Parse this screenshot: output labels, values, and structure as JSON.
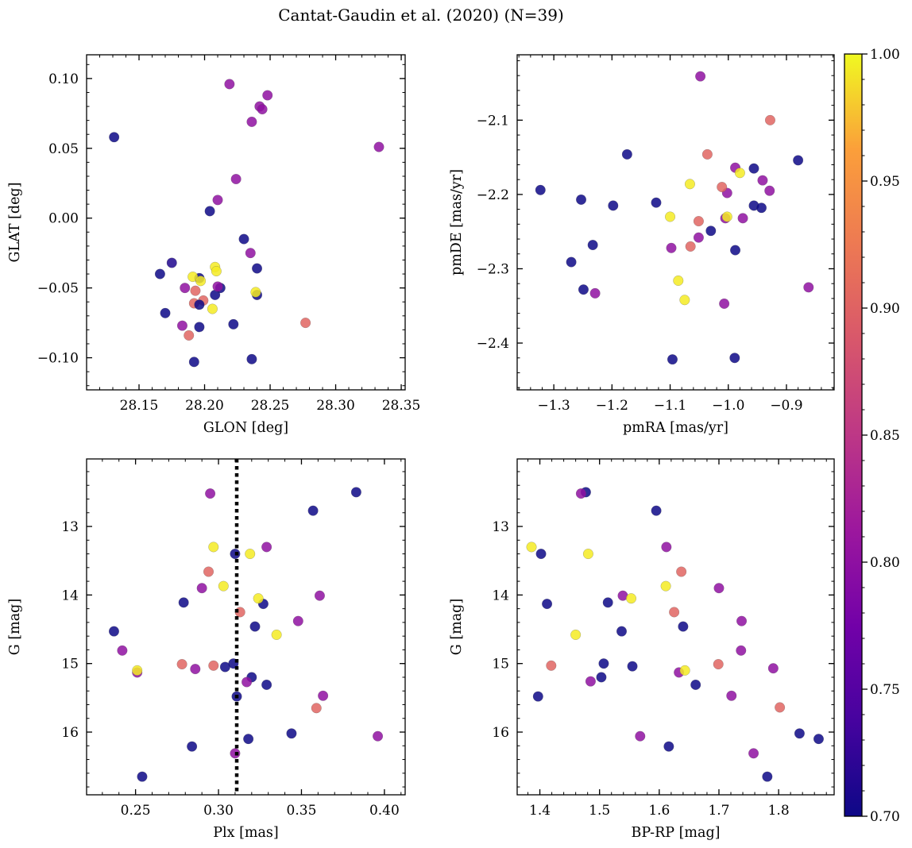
{
  "figure": {
    "title": "Cantat-Gaudin et al. (2020) (N=39)"
  },
  "colorbar": {
    "colormap": "plasma",
    "min": 0.7,
    "max": 1.0,
    "ticks": [
      0.7,
      0.75,
      0.8,
      0.85,
      0.9,
      0.95,
      1.0
    ],
    "tick_labels": [
      "0.70",
      "0.75",
      "0.80",
      "0.85",
      "0.90",
      "0.95",
      "1.00"
    ]
  },
  "style": {
    "low_color": "#262b94",
    "mid_color": "#a22ea8",
    "high_color": "#f0f921",
    "vline_color": "#000000"
  },
  "chart_data": [
    {
      "type": "scatter",
      "id": "sky",
      "xlabel": "GLON [deg]",
      "ylabel": "GLAT [deg]",
      "xlim": [
        28.11,
        28.353
      ],
      "ylim": [
        -0.123,
        0.117
      ],
      "y_inverted": false,
      "xticks": [
        28.15,
        28.2,
        28.25,
        28.3,
        28.35
      ],
      "xtick_labels": [
        "28.15",
        "28.20",
        "28.25",
        "28.30",
        "28.35"
      ],
      "xminor": 0.01,
      "yticks": [
        -0.1,
        -0.05,
        0.0,
        0.05,
        0.1
      ],
      "ytick_labels": [
        "−0.10",
        "−0.05",
        "0.00",
        "0.05",
        "0.10"
      ],
      "yminor": 0.01,
      "points": [
        {
          "x": 28.131,
          "y": 0.058,
          "c": 0.7
        },
        {
          "x": 28.166,
          "y": -0.04,
          "c": 0.7
        },
        {
          "x": 28.17,
          "y": -0.068,
          "c": 0.7
        },
        {
          "x": 28.175,
          "y": -0.032,
          "c": 0.71
        },
        {
          "x": 28.192,
          "y": -0.103,
          "c": 0.7
        },
        {
          "x": 28.196,
          "y": -0.078,
          "c": 0.7
        },
        {
          "x": 28.196,
          "y": -0.043,
          "c": 0.7
        },
        {
          "x": 28.204,
          "y": 0.005,
          "c": 0.7
        },
        {
          "x": 28.208,
          "y": -0.055,
          "c": 0.7
        },
        {
          "x": 28.212,
          "y": -0.05,
          "c": 0.7
        },
        {
          "x": 28.222,
          "y": -0.076,
          "c": 0.7
        },
        {
          "x": 28.23,
          "y": -0.015,
          "c": 0.7
        },
        {
          "x": 28.236,
          "y": -0.101,
          "c": 0.7
        },
        {
          "x": 28.24,
          "y": -0.036,
          "c": 0.7
        },
        {
          "x": 28.24,
          "y": -0.055,
          "c": 0.7
        },
        {
          "x": 28.219,
          "y": 0.096,
          "c": 0.79
        },
        {
          "x": 28.224,
          "y": 0.028,
          "c": 0.79
        },
        {
          "x": 28.21,
          "y": 0.013,
          "c": 0.79
        },
        {
          "x": 28.236,
          "y": 0.069,
          "c": 0.79
        },
        {
          "x": 28.242,
          "y": 0.08,
          "c": 0.79
        },
        {
          "x": 28.244,
          "y": 0.078,
          "c": 0.79
        },
        {
          "x": 28.248,
          "y": 0.088,
          "c": 0.79
        },
        {
          "x": 28.333,
          "y": 0.051,
          "c": 0.79
        },
        {
          "x": 28.235,
          "y": -0.025,
          "c": 0.79
        },
        {
          "x": 28.185,
          "y": -0.05,
          "c": 0.79
        },
        {
          "x": 28.183,
          "y": -0.077,
          "c": 0.79
        },
        {
          "x": 28.21,
          "y": -0.049,
          "c": 0.79
        },
        {
          "x": 28.193,
          "y": -0.052,
          "c": 0.88
        },
        {
          "x": 28.192,
          "y": -0.061,
          "c": 0.88
        },
        {
          "x": 28.199,
          "y": -0.059,
          "c": 0.88
        },
        {
          "x": 28.188,
          "y": -0.084,
          "c": 0.88
        },
        {
          "x": 28.277,
          "y": -0.075,
          "c": 0.88
        },
        {
          "x": 28.208,
          "y": -0.035,
          "c": 0.99
        },
        {
          "x": 28.209,
          "y": -0.038,
          "c": 0.99
        },
        {
          "x": 28.191,
          "y": -0.042,
          "c": 0.99
        },
        {
          "x": 28.197,
          "y": -0.045,
          "c": 0.99
        },
        {
          "x": 28.206,
          "y": -0.065,
          "c": 0.99
        },
        {
          "x": 28.239,
          "y": -0.053,
          "c": 0.99
        },
        {
          "x": 28.196,
          "y": -0.062,
          "c": 0.7
        }
      ]
    },
    {
      "type": "scatter",
      "id": "pm",
      "xlabel": "pmRA [mas/yr]",
      "ylabel": "pmDE [mas/yr]",
      "xlim": [
        -1.363,
        -0.818
      ],
      "ylim": [
        -2.463,
        -2.012
      ],
      "y_inverted": false,
      "xticks": [
        -1.3,
        -1.2,
        -1.1,
        -1.0,
        -0.9
      ],
      "xtick_labels": [
        "−1.3",
        "−1.2",
        "−1.1",
        "−1.0",
        "−0.9"
      ],
      "xminor": 0.02,
      "yticks": [
        -2.4,
        -2.3,
        -2.2,
        -2.1
      ],
      "ytick_labels": [
        "−2.4",
        "−2.3",
        "−2.2",
        "−2.1"
      ],
      "yminor": 0.02,
      "points": [
        {
          "x": -1.323,
          "y": -2.194,
          "c": 0.7
        },
        {
          "x": -1.253,
          "y": -2.207,
          "c": 0.7
        },
        {
          "x": -1.27,
          "y": -2.291,
          "c": 0.7
        },
        {
          "x": -1.249,
          "y": -2.328,
          "c": 0.7
        },
        {
          "x": -1.233,
          "y": -2.268,
          "c": 0.7
        },
        {
          "x": -1.198,
          "y": -2.215,
          "c": 0.7
        },
        {
          "x": -1.174,
          "y": -2.146,
          "c": 0.7
        },
        {
          "x": -1.124,
          "y": -2.211,
          "c": 0.7
        },
        {
          "x": -1.03,
          "y": -2.249,
          "c": 0.7
        },
        {
          "x": -0.988,
          "y": -2.275,
          "c": 0.7
        },
        {
          "x": -0.989,
          "y": -2.42,
          "c": 0.7
        },
        {
          "x": -1.096,
          "y": -2.422,
          "c": 0.7
        },
        {
          "x": -0.956,
          "y": -2.165,
          "c": 0.7
        },
        {
          "x": -0.956,
          "y": -2.215,
          "c": 0.7
        },
        {
          "x": -0.943,
          "y": -2.218,
          "c": 0.7
        },
        {
          "x": -0.88,
          "y": -2.154,
          "c": 0.7
        },
        {
          "x": -1.048,
          "y": -2.041,
          "c": 0.79
        },
        {
          "x": -0.988,
          "y": -2.164,
          "c": 0.79
        },
        {
          "x": -0.941,
          "y": -2.181,
          "c": 0.79
        },
        {
          "x": -0.929,
          "y": -2.195,
          "c": 0.79
        },
        {
          "x": -1.002,
          "y": -2.198,
          "c": 0.79
        },
        {
          "x": -1.005,
          "y": -2.232,
          "c": 0.79
        },
        {
          "x": -0.975,
          "y": -2.232,
          "c": 0.79
        },
        {
          "x": -1.051,
          "y": -2.258,
          "c": 0.79
        },
        {
          "x": -1.098,
          "y": -2.272,
          "c": 0.79
        },
        {
          "x": -1.229,
          "y": -2.333,
          "c": 0.79
        },
        {
          "x": -1.007,
          "y": -2.347,
          "c": 0.79
        },
        {
          "x": -0.862,
          "y": -2.325,
          "c": 0.79
        },
        {
          "x": -0.928,
          "y": -2.1,
          "c": 0.88
        },
        {
          "x": -1.036,
          "y": -2.146,
          "c": 0.88
        },
        {
          "x": -1.011,
          "y": -2.19,
          "c": 0.88
        },
        {
          "x": -1.051,
          "y": -2.236,
          "c": 0.88
        },
        {
          "x": -1.065,
          "y": -2.27,
          "c": 0.88
        },
        {
          "x": -1.066,
          "y": -2.186,
          "c": 0.99
        },
        {
          "x": -0.98,
          "y": -2.171,
          "c": 0.99
        },
        {
          "x": -1.1,
          "y": -2.23,
          "c": 0.99
        },
        {
          "x": -1.002,
          "y": -2.23,
          "c": 0.99
        },
        {
          "x": -1.086,
          "y": -2.316,
          "c": 0.99
        },
        {
          "x": -1.075,
          "y": -2.342,
          "c": 0.99
        }
      ]
    },
    {
      "type": "scatter",
      "id": "plx",
      "xlabel": "Plx [mas]",
      "ylabel": "G [mag]",
      "xlim": [
        0.2205,
        0.4125
      ],
      "ylim": [
        16.915,
        12.015
      ],
      "y_inverted": true,
      "xticks": [
        0.25,
        0.3,
        0.35,
        0.4
      ],
      "xtick_labels": [
        "0.25",
        "0.30",
        "0.35",
        "0.40"
      ],
      "xminor": 0.01,
      "yticks": [
        13,
        14,
        15,
        16
      ],
      "ytick_labels": [
        "13",
        "14",
        "15",
        "16"
      ],
      "yminor": 0.2,
      "vline": {
        "x": 0.311,
        "style": "dotted"
      },
      "points": [
        {
          "x": 0.383,
          "y": 12.5,
          "c": 0.7
        },
        {
          "x": 0.357,
          "y": 12.77,
          "c": 0.7
        },
        {
          "x": 0.31,
          "y": 13.4,
          "c": 0.7
        },
        {
          "x": 0.279,
          "y": 14.11,
          "c": 0.7
        },
        {
          "x": 0.237,
          "y": 14.53,
          "c": 0.7
        },
        {
          "x": 0.327,
          "y": 14.13,
          "c": 0.7
        },
        {
          "x": 0.322,
          "y": 14.46,
          "c": 0.7
        },
        {
          "x": 0.309,
          "y": 15.0,
          "c": 0.7
        },
        {
          "x": 0.304,
          "y": 15.05,
          "c": 0.7
        },
        {
          "x": 0.32,
          "y": 15.2,
          "c": 0.7
        },
        {
          "x": 0.329,
          "y": 15.31,
          "c": 0.7
        },
        {
          "x": 0.311,
          "y": 15.48,
          "c": 0.7
        },
        {
          "x": 0.344,
          "y": 16.02,
          "c": 0.7
        },
        {
          "x": 0.318,
          "y": 16.1,
          "c": 0.7
        },
        {
          "x": 0.284,
          "y": 16.21,
          "c": 0.7
        },
        {
          "x": 0.254,
          "y": 16.65,
          "c": 0.7
        },
        {
          "x": 0.295,
          "y": 12.52,
          "c": 0.79
        },
        {
          "x": 0.329,
          "y": 13.3,
          "c": 0.79
        },
        {
          "x": 0.29,
          "y": 13.9,
          "c": 0.79
        },
        {
          "x": 0.361,
          "y": 14.01,
          "c": 0.79
        },
        {
          "x": 0.348,
          "y": 14.38,
          "c": 0.79
        },
        {
          "x": 0.242,
          "y": 14.81,
          "c": 0.79
        },
        {
          "x": 0.286,
          "y": 15.08,
          "c": 0.79
        },
        {
          "x": 0.251,
          "y": 15.13,
          "c": 0.79
        },
        {
          "x": 0.317,
          "y": 15.27,
          "c": 0.79
        },
        {
          "x": 0.363,
          "y": 15.47,
          "c": 0.79
        },
        {
          "x": 0.31,
          "y": 16.31,
          "c": 0.79
        },
        {
          "x": 0.396,
          "y": 16.06,
          "c": 0.79
        },
        {
          "x": 0.294,
          "y": 13.66,
          "c": 0.88
        },
        {
          "x": 0.313,
          "y": 14.25,
          "c": 0.88
        },
        {
          "x": 0.278,
          "y": 15.01,
          "c": 0.88
        },
        {
          "x": 0.297,
          "y": 15.03,
          "c": 0.88
        },
        {
          "x": 0.359,
          "y": 15.65,
          "c": 0.88
        },
        {
          "x": 0.297,
          "y": 13.3,
          "c": 0.99
        },
        {
          "x": 0.319,
          "y": 13.4,
          "c": 0.99
        },
        {
          "x": 0.303,
          "y": 13.87,
          "c": 0.99
        },
        {
          "x": 0.324,
          "y": 14.05,
          "c": 0.99
        },
        {
          "x": 0.335,
          "y": 14.58,
          "c": 0.99
        },
        {
          "x": 0.251,
          "y": 15.1,
          "c": 0.99
        }
      ]
    },
    {
      "type": "scatter",
      "id": "cmd",
      "xlabel": "BP-RP [mag]",
      "ylabel": "G [mag]",
      "xlim": [
        1.362,
        1.893
      ],
      "ylim": [
        16.915,
        12.015
      ],
      "y_inverted": true,
      "xticks": [
        1.4,
        1.5,
        1.6,
        1.7,
        1.8
      ],
      "xtick_labels": [
        "1.4",
        "1.5",
        "1.6",
        "1.7",
        "1.8"
      ],
      "xminor": 0.02,
      "yticks": [
        13,
        14,
        15,
        16
      ],
      "ytick_labels": [
        "13",
        "14",
        "15",
        "16"
      ],
      "yminor": 0.2,
      "points": [
        {
          "x": 1.477,
          "y": 12.5,
          "c": 0.7
        },
        {
          "x": 1.595,
          "y": 12.77,
          "c": 0.7
        },
        {
          "x": 1.402,
          "y": 13.4,
          "c": 0.7
        },
        {
          "x": 1.412,
          "y": 14.13,
          "c": 0.7
        },
        {
          "x": 1.514,
          "y": 14.11,
          "c": 0.7
        },
        {
          "x": 1.537,
          "y": 14.53,
          "c": 0.7
        },
        {
          "x": 1.64,
          "y": 14.46,
          "c": 0.7
        },
        {
          "x": 1.507,
          "y": 15.0,
          "c": 0.7
        },
        {
          "x": 1.555,
          "y": 15.04,
          "c": 0.7
        },
        {
          "x": 1.503,
          "y": 15.2,
          "c": 0.7
        },
        {
          "x": 1.661,
          "y": 15.31,
          "c": 0.7
        },
        {
          "x": 1.397,
          "y": 15.48,
          "c": 0.7
        },
        {
          "x": 1.835,
          "y": 16.02,
          "c": 0.7
        },
        {
          "x": 1.867,
          "y": 16.1,
          "c": 0.7
        },
        {
          "x": 1.616,
          "y": 16.21,
          "c": 0.7
        },
        {
          "x": 1.781,
          "y": 16.65,
          "c": 0.7
        },
        {
          "x": 1.469,
          "y": 12.52,
          "c": 0.79
        },
        {
          "x": 1.612,
          "y": 13.3,
          "c": 0.79
        },
        {
          "x": 1.7,
          "y": 13.9,
          "c": 0.79
        },
        {
          "x": 1.539,
          "y": 14.01,
          "c": 0.79
        },
        {
          "x": 1.738,
          "y": 14.38,
          "c": 0.79
        },
        {
          "x": 1.737,
          "y": 14.81,
          "c": 0.79
        },
        {
          "x": 1.791,
          "y": 15.07,
          "c": 0.79
        },
        {
          "x": 1.633,
          "y": 15.13,
          "c": 0.79
        },
        {
          "x": 1.485,
          "y": 15.26,
          "c": 0.79
        },
        {
          "x": 1.721,
          "y": 15.47,
          "c": 0.79
        },
        {
          "x": 1.568,
          "y": 16.06,
          "c": 0.79
        },
        {
          "x": 1.758,
          "y": 16.31,
          "c": 0.79
        },
        {
          "x": 1.637,
          "y": 13.66,
          "c": 0.88
        },
        {
          "x": 1.625,
          "y": 14.25,
          "c": 0.88
        },
        {
          "x": 1.699,
          "y": 15.01,
          "c": 0.88
        },
        {
          "x": 1.419,
          "y": 15.03,
          "c": 0.88
        },
        {
          "x": 1.802,
          "y": 15.64,
          "c": 0.88
        },
        {
          "x": 1.386,
          "y": 13.3,
          "c": 0.99
        },
        {
          "x": 1.481,
          "y": 13.4,
          "c": 0.99
        },
        {
          "x": 1.611,
          "y": 13.87,
          "c": 0.99
        },
        {
          "x": 1.553,
          "y": 14.05,
          "c": 0.99
        },
        {
          "x": 1.46,
          "y": 14.58,
          "c": 0.99
        },
        {
          "x": 1.643,
          "y": 15.1,
          "c": 0.99
        }
      ]
    }
  ]
}
